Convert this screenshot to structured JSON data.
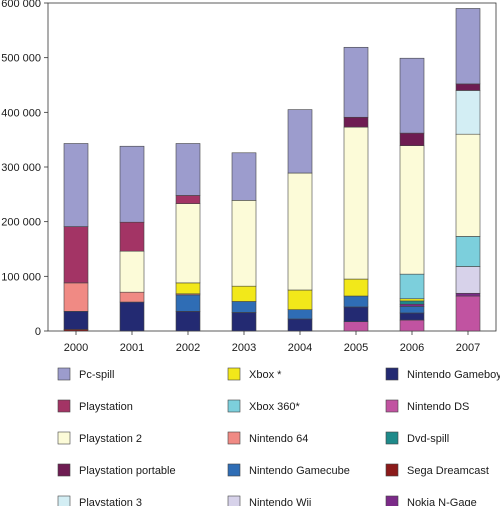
{
  "chart_data": {
    "type": "bar",
    "stacked": true,
    "categories": [
      "2000",
      "2001",
      "2002",
      "2003",
      "2004",
      "2005",
      "2006",
      "2007"
    ],
    "ylim": [
      0,
      600000
    ],
    "yticks": [
      0,
      100000,
      200000,
      300000,
      400000,
      500000,
      600000
    ],
    "ytick_labels": [
      "0",
      "100 000",
      "200 000",
      "300 000",
      "400 000",
      "500 000",
      "600 000"
    ],
    "grid": false,
    "legend_position": "bottom",
    "series": [
      {
        "name": "Sega Dreamcast",
        "color": "#8b1a1a",
        "values": [
          3000,
          0,
          0,
          0,
          0,
          0,
          0,
          0
        ]
      },
      {
        "name": "Nintendo DS",
        "color": "#c153a1",
        "values": [
          0,
          0,
          0,
          0,
          0,
          17000,
          20000,
          64000
        ]
      },
      {
        "name": "Nintendo Gameboy",
        "color": "#232a72",
        "values": [
          33000,
          53000,
          36000,
          34000,
          22000,
          27000,
          13000,
          0
        ]
      },
      {
        "name": "Nintendo Gamecube",
        "color": "#2f6db5",
        "values": [
          0,
          0,
          30000,
          20000,
          17000,
          20000,
          12000,
          0
        ]
      },
      {
        "name": "Nintendo 64",
        "color": "#f08a84",
        "values": [
          52000,
          18000,
          2000,
          0,
          0,
          0,
          0,
          0
        ]
      },
      {
        "name": "Nokia N-Gage",
        "color": "#7b2a88",
        "values": [
          0,
          0,
          0,
          0,
          0,
          0,
          4000,
          5000
        ]
      },
      {
        "name": "Dvd-spill",
        "color": "#1f8a8a",
        "values": [
          0,
          0,
          0,
          0,
          0,
          0,
          6000,
          0
        ]
      },
      {
        "name": "Nintendo Wii",
        "color": "#d7d2ea",
        "values": [
          0,
          0,
          0,
          0,
          0,
          0,
          0,
          49000
        ]
      },
      {
        "name": "Xbox *",
        "color": "#f2e81a",
        "values": [
          0,
          0,
          20000,
          28000,
          36000,
          31000,
          4000,
          0
        ]
      },
      {
        "name": "Xbox 360*",
        "color": "#7ccfdc",
        "values": [
          0,
          0,
          0,
          0,
          0,
          0,
          45000,
          55000
        ]
      },
      {
        "name": "Playstation 2",
        "color": "#fcfbd8",
        "values": [
          0,
          75000,
          145000,
          157000,
          214000,
          278000,
          235000,
          187000
        ]
      },
      {
        "name": "Playstation 3",
        "color": "#d3eef4",
        "values": [
          0,
          0,
          0,
          0,
          0,
          0,
          0,
          80000
        ]
      },
      {
        "name": "Playstation portable",
        "color": "#6e1c52",
        "values": [
          0,
          0,
          0,
          0,
          0,
          18000,
          23000,
          12000
        ]
      },
      {
        "name": "Playstation",
        "color": "#a33465",
        "values": [
          103000,
          53000,
          15000,
          0,
          0,
          0,
          0,
          0
        ]
      },
      {
        "name": "Pc-spill",
        "color": "#9c9ccd",
        "values": [
          152000,
          139000,
          95000,
          87000,
          116000,
          128000,
          137000,
          138000
        ]
      }
    ],
    "legend_rows": [
      [
        "Pc-spill",
        "Xbox *",
        "Nintendo Gameboy"
      ],
      [
        "Playstation",
        "Xbox 360*",
        "Nintendo DS"
      ],
      [
        "Playstation 2",
        "Nintendo 64",
        "Dvd-spill"
      ],
      [
        "Playstation portable",
        "Nintendo Gamecube",
        "Sega Dreamcast"
      ],
      [
        "Playstation 3",
        "Nintendo Wii",
        "Nokia N-Gage"
      ]
    ]
  }
}
